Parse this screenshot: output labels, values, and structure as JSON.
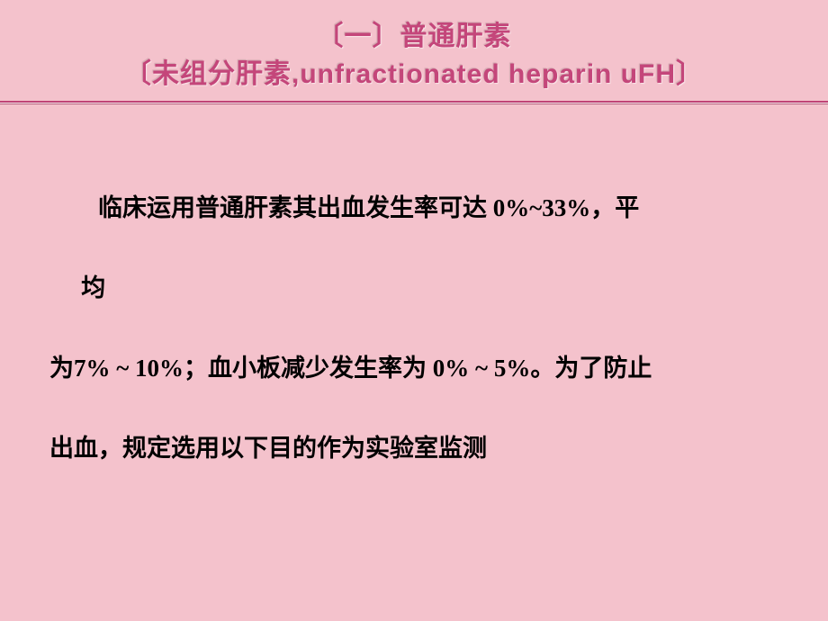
{
  "slide": {
    "background_color": "#f4c2cc",
    "title_color": "#c4467a",
    "title_lines": [
      "〔一〕普通肝素",
      "〔未组分肝素,unfractionated heparin uFH〕"
    ],
    "title_fontsize": 30,
    "divider_color": "#c94a7d",
    "body": {
      "fontsize": 27,
      "line_height": 3.3,
      "text_color": "#000000",
      "p1_part1": "临床运用普通肝素其出血发生率可达 0%~33%，平",
      "p1_part2": "均",
      "p2": "为7% ~ 10%；血小板减少发生率为 0% ~ 5%。为了防止",
      "p3": "出血，规定选用以下目的作为实验室监测"
    }
  }
}
